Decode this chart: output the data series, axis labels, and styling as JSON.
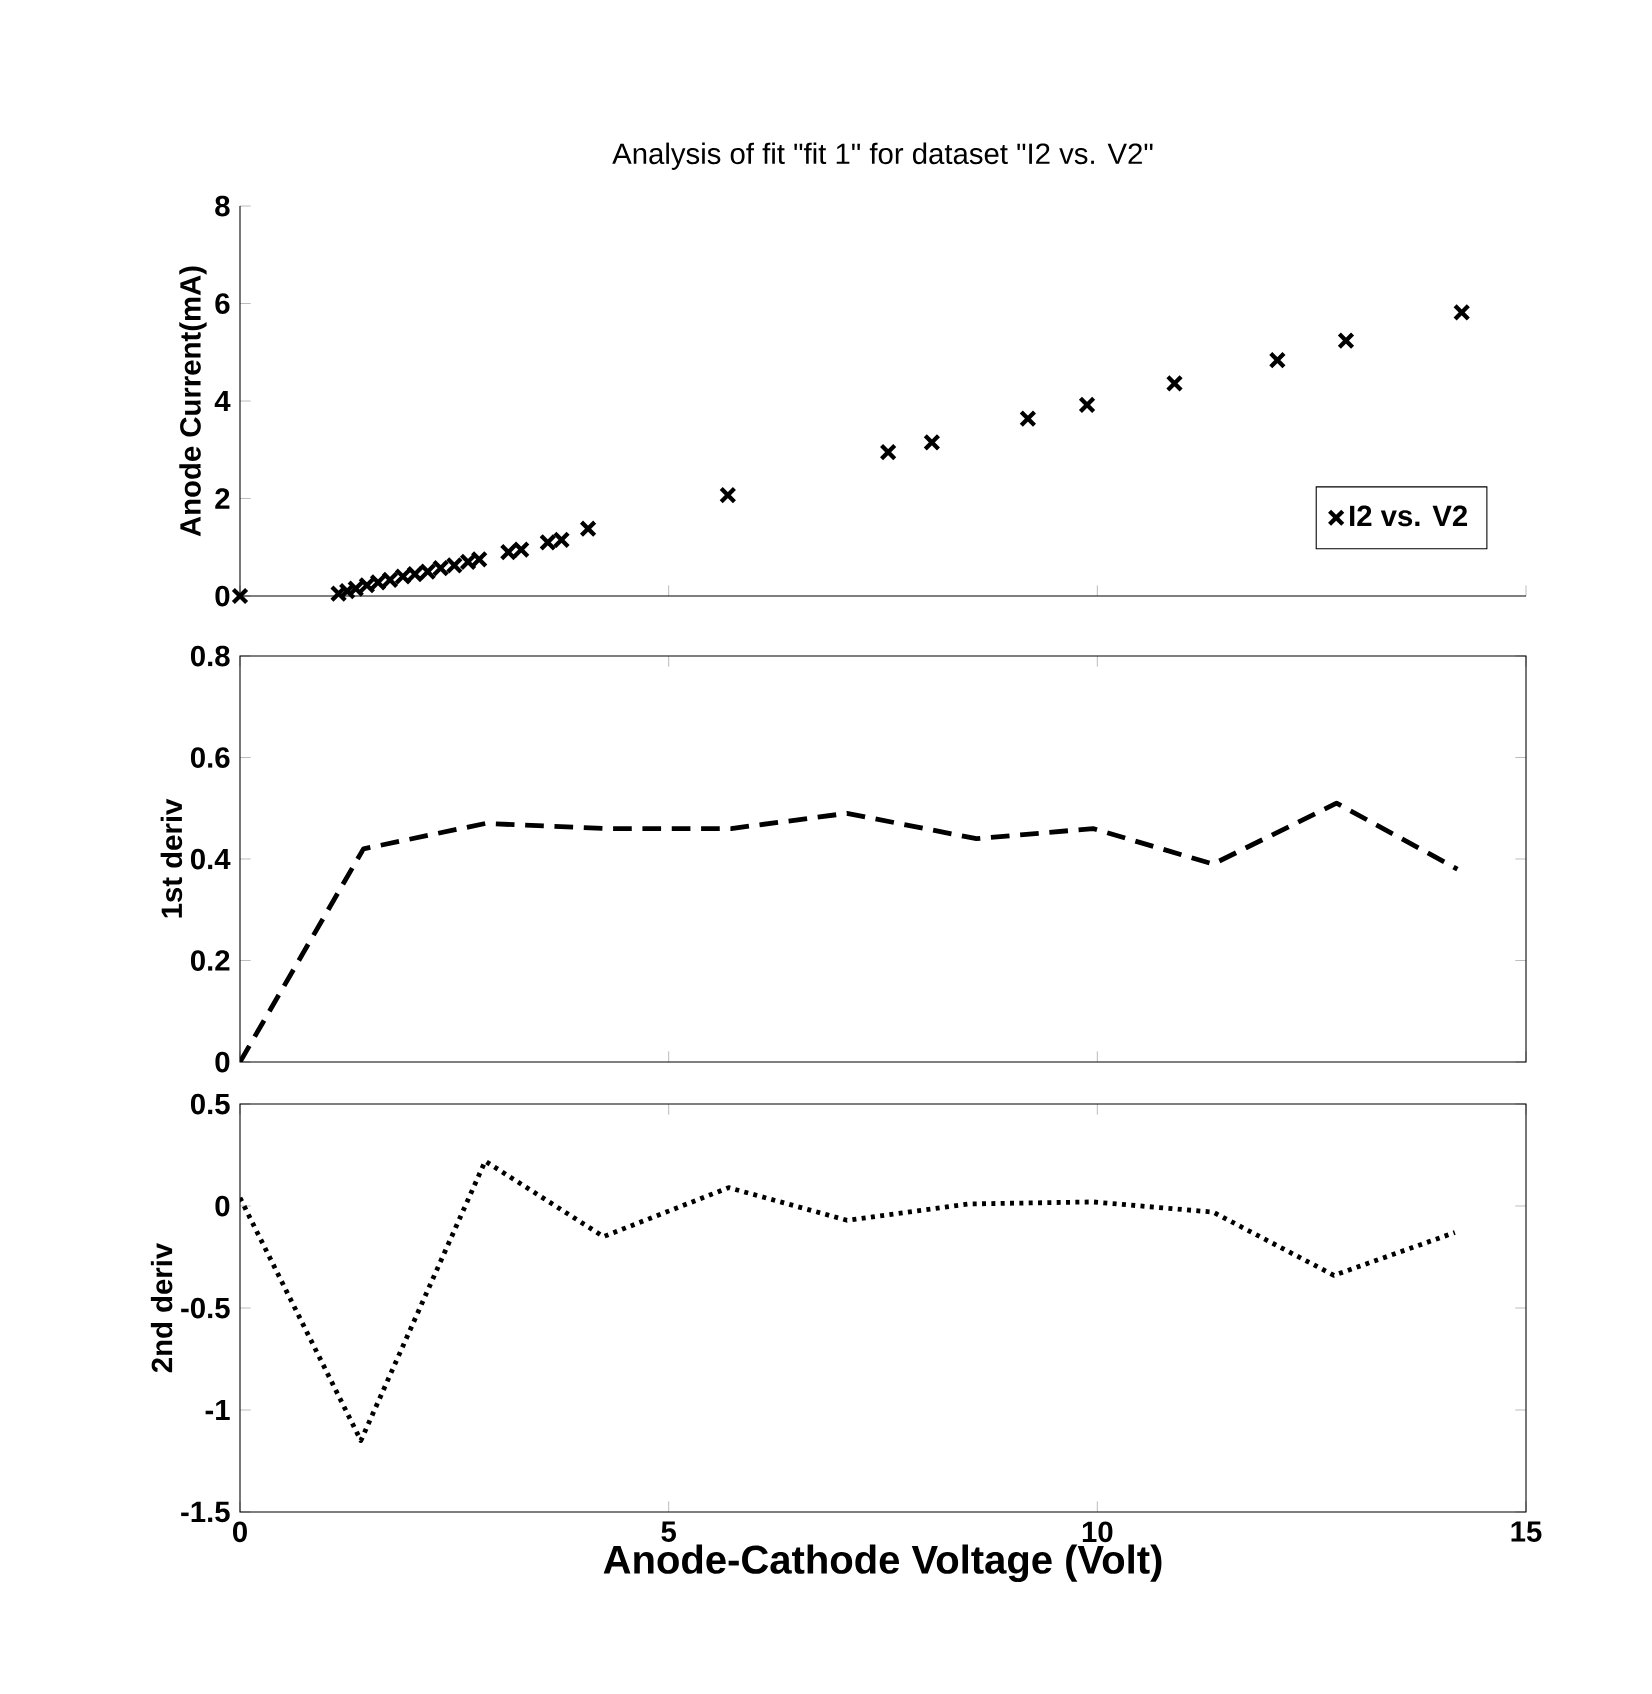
{
  "chart_data": [
    {
      "type": "scatter",
      "title": "Analysis of fit \"fit 1\" for dataset \"I2 vs. V2\"",
      "ylabel": "Anode Current(mA)",
      "marker": "cross",
      "legend": "bottom right",
      "tick_labels": "y",
      "series": [
        {
          "name": "I2 vs. V2",
          "color": "#000000",
          "x": [
            0,
            1.15,
            1.25,
            1.35,
            1.48,
            1.61,
            1.75,
            1.9,
            2.04,
            2.19,
            2.34,
            2.5,
            2.66,
            2.79,
            3.13,
            3.28,
            3.59,
            3.75,
            4.06,
            5.69,
            7.56,
            8.07,
            9.19,
            9.88,
            10.9,
            12.1,
            12.9,
            14.25
          ],
          "values": [
            0,
            0.05,
            0.1,
            0.15,
            0.22,
            0.28,
            0.33,
            0.4,
            0.45,
            0.5,
            0.57,
            0.63,
            0.7,
            0.75,
            0.9,
            0.95,
            1.1,
            1.15,
            1.38,
            2.07,
            2.95,
            3.15,
            3.64,
            3.92,
            4.36,
            4.84,
            5.24,
            5.82
          ]
        }
      ],
      "xlim": [
        0,
        15
      ],
      "xticks": [
        0,
        5,
        10,
        15
      ],
      "ylim": [
        0,
        8
      ],
      "yticks": [
        0,
        2,
        4,
        6,
        8
      ]
    },
    {
      "type": "line",
      "ylabel": "1st deriv",
      "line_style": "dashed",
      "tick_labels": "y",
      "series": [
        {
          "color": "#000000",
          "x": [
            0,
            1.44,
            2.86,
            4.27,
            5.73,
            7.08,
            8.59,
            9.95,
            11.35,
            12.79,
            14.2
          ],
          "values": [
            0,
            0.42,
            0.47,
            0.46,
            0.46,
            0.49,
            0.44,
            0.46,
            0.39,
            0.51,
            0.38
          ]
        }
      ],
      "xlim": [
        0,
        15
      ],
      "xticks": [
        0,
        5,
        10,
        15
      ],
      "ylim": [
        0,
        0.8
      ],
      "yticks": [
        0,
        0.2,
        0.4,
        0.6,
        0.8
      ]
    },
    {
      "type": "line",
      "ylabel": "2nd deriv",
      "xlabel": "Anode-Cathode Voltage (Volt)",
      "line_style": "dotted",
      "series": [
        {
          "color": "#000000",
          "x": [
            0,
            1.41,
            2.86,
            4.24,
            5.7,
            7.08,
            8.49,
            9.95,
            11.35,
            12.76,
            14.17
          ],
          "values": [
            0.04,
            -1.15,
            0.22,
            -0.15,
            0.09,
            -0.07,
            0.01,
            0.02,
            -0.03,
            -0.34,
            -0.13
          ]
        }
      ],
      "xlim": [
        0,
        15
      ],
      "xticks": [
        0,
        5,
        10,
        15
      ],
      "ylim": [
        -1.5,
        0.5
      ],
      "yticks": [
        -1.5,
        -1,
        -0.5,
        0,
        0.5
      ]
    }
  ]
}
